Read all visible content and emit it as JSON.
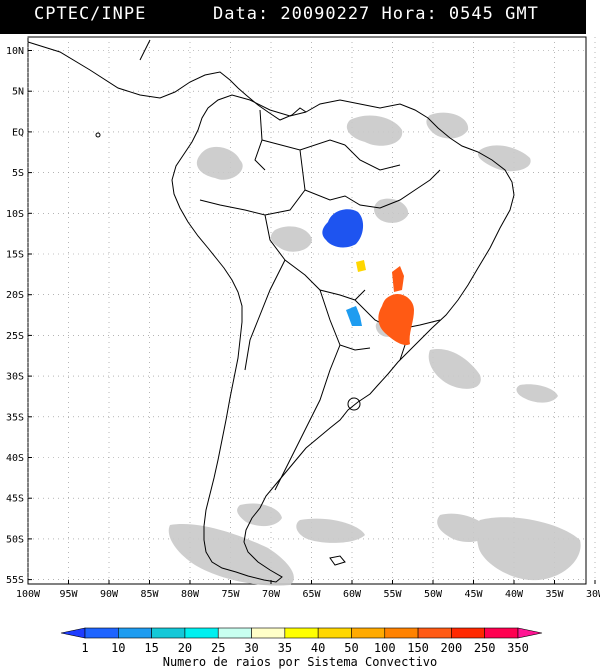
{
  "header": {
    "source": "CPTEC/INPE",
    "datetime": "Data: 20090227 Hora: 0545 GMT"
  },
  "map": {
    "lat_labels": [
      "10N",
      "5N",
      "EQ",
      "5S",
      "10S",
      "15S",
      "20S",
      "25S",
      "30S",
      "35S",
      "40S",
      "45S",
      "50S",
      "55S"
    ],
    "lon_labels": [
      "100W",
      "95W",
      "90W",
      "85W",
      "80W",
      "75W",
      "70W",
      "65W",
      "60W",
      "55W",
      "50W",
      "45W",
      "40W",
      "35W",
      "30W"
    ],
    "lat_range": [
      10,
      -55
    ],
    "lon_range": [
      -100,
      -30
    ],
    "storm_cells": [
      {
        "name": "cell-mato-grosso",
        "color": "#1e54f0",
        "level": "10"
      },
      {
        "name": "cell-goias-small",
        "color": "#ffd700",
        "level": "40"
      },
      {
        "name": "cell-parana-west",
        "color": "#1e9cf0",
        "level": "15"
      },
      {
        "name": "cell-sao-paulo",
        "color": "#ff5a14",
        "level": "150"
      }
    ]
  },
  "legend": {
    "values": [
      "1",
      "10",
      "15",
      "20",
      "25",
      "30",
      "35",
      "40",
      "50",
      "100",
      "150",
      "200",
      "250",
      "350"
    ],
    "colors": [
      "#1e3cff",
      "#1e64ff",
      "#1e9cf0",
      "#14c8d8",
      "#00f0f0",
      "#c8fff0",
      "#ffffc8",
      "#ffff00",
      "#ffd700",
      "#ffaa00",
      "#ff8200",
      "#ff5a14",
      "#ff2800",
      "#ff0050",
      "#ff1493"
    ],
    "caption": "Numero de raios por Sistema Convectivo"
  }
}
